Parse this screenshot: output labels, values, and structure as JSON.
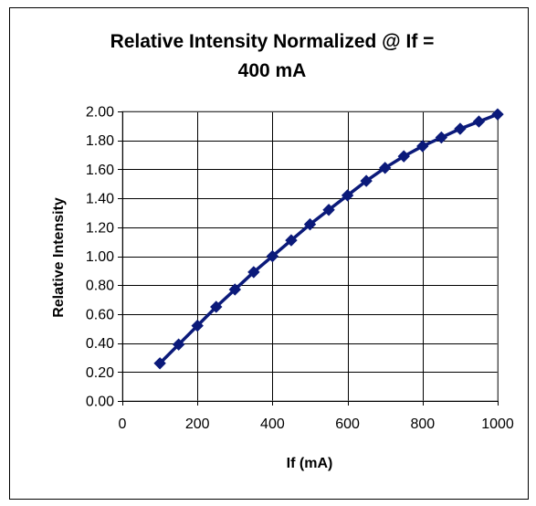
{
  "chart_data": {
    "type": "line",
    "title_lines": [
      "Relative Intensity Normalized @ If =",
      "400 mA"
    ],
    "xlabel": "If (mA)",
    "ylabel": "Relative Intensity",
    "xlim": [
      0,
      1000
    ],
    "ylim": [
      0,
      2.0
    ],
    "x_ticks": [
      "0",
      "200",
      "400",
      "600",
      "800",
      "1000"
    ],
    "y_ticks": [
      "0.00",
      "0.20",
      "0.40",
      "0.60",
      "0.80",
      "1.00",
      "1.20",
      "1.40",
      "1.60",
      "1.80",
      "2.00"
    ],
    "grid": true,
    "legend": "none",
    "series": [
      {
        "color": "#0b1a7a",
        "marker": "diamond",
        "x": [
          100,
          150,
          200,
          250,
          300,
          350,
          400,
          450,
          500,
          550,
          600,
          650,
          700,
          750,
          800,
          850,
          900,
          950,
          1000
        ],
        "y": [
          0.26,
          0.39,
          0.52,
          0.65,
          0.77,
          0.89,
          1.0,
          1.11,
          1.22,
          1.32,
          1.42,
          1.52,
          1.61,
          1.69,
          1.76,
          1.82,
          1.88,
          1.93,
          1.98
        ]
      }
    ]
  }
}
